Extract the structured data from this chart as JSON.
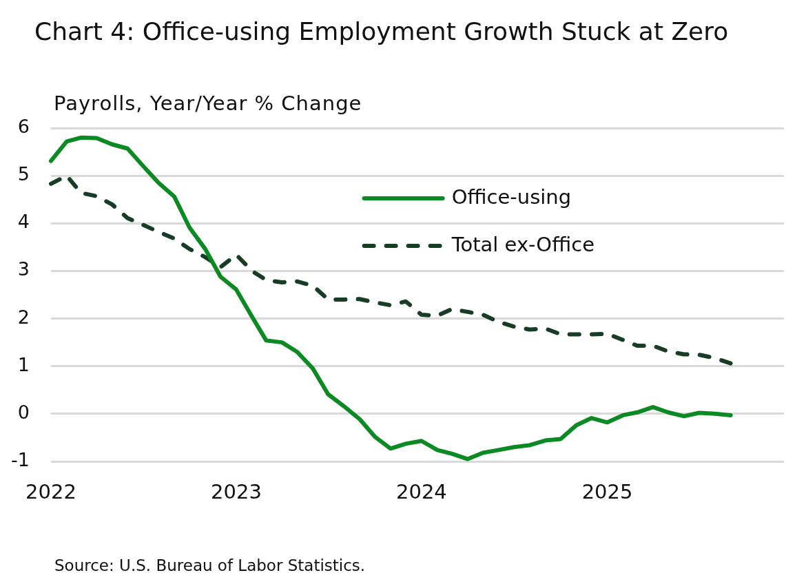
{
  "chart_data": {
    "type": "line",
    "title": "Chart 4: Office-using Employment Growth Stuck at Zero",
    "ylabel": "Payrolls, Year/Year % Change",
    "annotations": [
      "Source: U.S. Bureau of Labor Statistics."
    ],
    "x": [
      "2022-01",
      "2022-02",
      "2022-03",
      "2022-04",
      "2022-05",
      "2022-06",
      "2022-07",
      "2022-08",
      "2022-09",
      "2022-10",
      "2022-11",
      "2022-12",
      "2023-01",
      "2023-02",
      "2023-03",
      "2023-04",
      "2023-05",
      "2023-06",
      "2023-07",
      "2023-08",
      "2023-09",
      "2023-10",
      "2023-11",
      "2023-12",
      "2024-01",
      "2024-02",
      "2024-03",
      "2024-04",
      "2024-05",
      "2024-06",
      "2024-07",
      "2024-08",
      "2024-09",
      "2024-10",
      "2024-11",
      "2024-12",
      "2025-01",
      "2025-02",
      "2025-03",
      "2025-04",
      "2025-05",
      "2025-06",
      "2025-07",
      "2025-08",
      "2025-09"
    ],
    "xlim": [
      "2022-01",
      "2025-12-15"
    ],
    "xticks": [
      "2022",
      "2023",
      "2024",
      "2025"
    ],
    "ylim": [
      -1,
      6
    ],
    "yticks": [
      -1,
      0,
      1,
      2,
      3,
      4,
      5,
      6
    ],
    "grid": "y",
    "legend": "top right",
    "marker": "none",
    "series": [
      {
        "name": "Office-using",
        "color": "#0b8a24",
        "line_style": "solid",
        "values": [
          5.31,
          5.72,
          5.8,
          5.79,
          5.66,
          5.57,
          5.21,
          4.85,
          4.56,
          3.91,
          3.46,
          2.88,
          2.61,
          2.04,
          1.54,
          1.5,
          1.3,
          0.95,
          0.41,
          0.16,
          -0.11,
          -0.48,
          -0.73,
          -0.63,
          -0.57,
          -0.76,
          -0.84,
          -0.95,
          -0.82,
          -0.76,
          -0.7,
          -0.66,
          -0.56,
          -0.53,
          -0.24,
          -0.09,
          -0.18,
          -0.03,
          0.03,
          0.14,
          0.03,
          -0.05,
          0.02,
          0.0,
          -0.03
        ]
      },
      {
        "name": "Total ex-Office",
        "color": "#173d24",
        "line_style": "dashed",
        "values": [
          4.83,
          5.0,
          4.64,
          4.57,
          4.4,
          4.11,
          3.97,
          3.82,
          3.68,
          3.46,
          3.29,
          3.08,
          3.34,
          3.0,
          2.81,
          2.76,
          2.78,
          2.69,
          2.4,
          2.4,
          2.41,
          2.34,
          2.28,
          2.36,
          2.08,
          2.06,
          2.2,
          2.14,
          2.08,
          1.93,
          1.83,
          1.77,
          1.79,
          1.67,
          1.67,
          1.67,
          1.68,
          1.55,
          1.43,
          1.43,
          1.31,
          1.25,
          1.24,
          1.17,
          1.06
        ]
      }
    ]
  }
}
